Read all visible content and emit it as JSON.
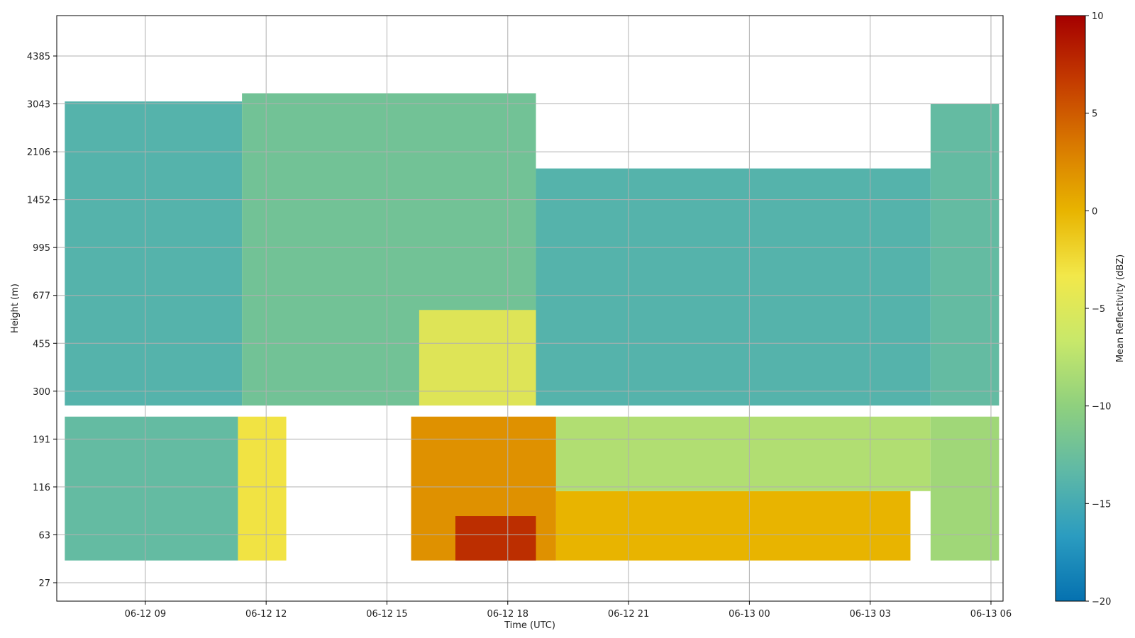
{
  "chart_data": {
    "type": "heatmap",
    "xlabel": "Time (UTC)",
    "ylabel": "Height (m)",
    "x_ticks": [
      "06-12 09",
      "06-12 12",
      "06-12 15",
      "06-12 18",
      "06-12 21",
      "06-13 00",
      "06-13 03",
      "06-13 06"
    ],
    "y_ticks": [
      "27",
      "63",
      "116",
      "191",
      "300",
      "455",
      "677",
      "995",
      "1452",
      "2106",
      "3043",
      "4385"
    ],
    "x_range_hours": [
      6.8,
      30.3
    ],
    "grid": true,
    "colorbar": {
      "label": "Mean Reflectivity (dBZ)",
      "range": [
        -20,
        10
      ],
      "ticks": [
        "10",
        "5",
        "0",
        "−5",
        "−10",
        "−15",
        "−20"
      ],
      "colormap": [
        "#0571b0",
        "#2b9cc0",
        "#5fb9a6",
        "#8fd07e",
        "#c8e86a",
        "#f2e84a",
        "#e8b400",
        "#d97a00",
        "#c43b00",
        "#a50000"
      ]
    },
    "regions": [
      {
        "layer": "upper",
        "t_start": 7.0,
        "t_end": 11.4,
        "h_top": 3100,
        "mean_dbz": -14
      },
      {
        "layer": "upper",
        "t_start": 11.4,
        "t_end": 18.7,
        "h_top": 3300,
        "mean_dbz": -12
      },
      {
        "layer": "upper",
        "t_start": 18.7,
        "t_end": 28.5,
        "h_top": 1850,
        "mean_dbz": -14
      },
      {
        "layer": "upper",
        "t_start": 28.5,
        "t_end": 30.2,
        "h_top": 3050,
        "mean_dbz": -13
      },
      {
        "layer": "upper-core",
        "t_start": 15.8,
        "t_end": 18.7,
        "h_range": [
          260,
          600
        ],
        "mean_dbz": -4
      },
      {
        "layer": "lower",
        "t_start": 7.0,
        "t_end": 11.3,
        "h_range": [
          40,
          240
        ],
        "mean_dbz": -13
      },
      {
        "layer": "lower",
        "t_start": 11.3,
        "t_end": 12.5,
        "h_range": [
          40,
          240
        ],
        "mean_dbz": -3
      },
      {
        "layer": "lower",
        "t_start": 15.6,
        "t_end": 19.2,
        "h_range": [
          40,
          240
        ],
        "mean_dbz": 2
      },
      {
        "layer": "lower-core",
        "t_start": 16.7,
        "t_end": 18.7,
        "h_range": [
          40,
          80
        ],
        "mean_dbz": 8
      },
      {
        "layer": "lower",
        "t_start": 19.2,
        "t_end": 28.0,
        "h_range": [
          40,
          110
        ],
        "mean_dbz": 0
      },
      {
        "layer": "lower",
        "t_start": 19.2,
        "t_end": 28.5,
        "h_range": [
          110,
          240
        ],
        "mean_dbz": -8
      },
      {
        "layer": "lower",
        "t_start": 28.5,
        "t_end": 30.2,
        "h_range": [
          40,
          240
        ],
        "mean_dbz": -9
      }
    ]
  }
}
